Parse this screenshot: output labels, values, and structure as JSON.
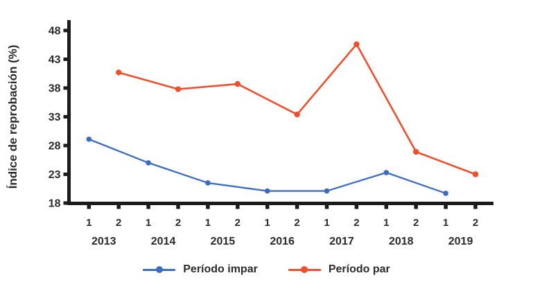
{
  "chart_data": {
    "type": "line",
    "title": "",
    "xlabel": "",
    "ylabel": "Índice de reprobación (%)",
    "ylim": [
      18,
      48
    ],
    "yticks": [
      48,
      43,
      38,
      33,
      28,
      23,
      18
    ],
    "years": [
      "2013",
      "2014",
      "2015",
      "2016",
      "2017",
      "2018",
      "2019"
    ],
    "periods_per_year": [
      "1",
      "2"
    ],
    "grid": false,
    "legend_position": "bottom",
    "series": [
      {
        "name": "Período impar",
        "period": 1,
        "color": "#3b6cc0",
        "values": [
          29.1,
          25.0,
          21.5,
          20.1,
          20.1,
          23.3,
          19.7
        ]
      },
      {
        "name": "Período par",
        "period": 2,
        "color": "#f04e2d",
        "values": [
          40.7,
          37.8,
          38.7,
          33.4,
          45.6,
          26.9,
          23.0
        ]
      }
    ]
  },
  "colors": {
    "axis": "#1b1b1b",
    "text": "#2a2a2a",
    "background": "#ffffff"
  }
}
